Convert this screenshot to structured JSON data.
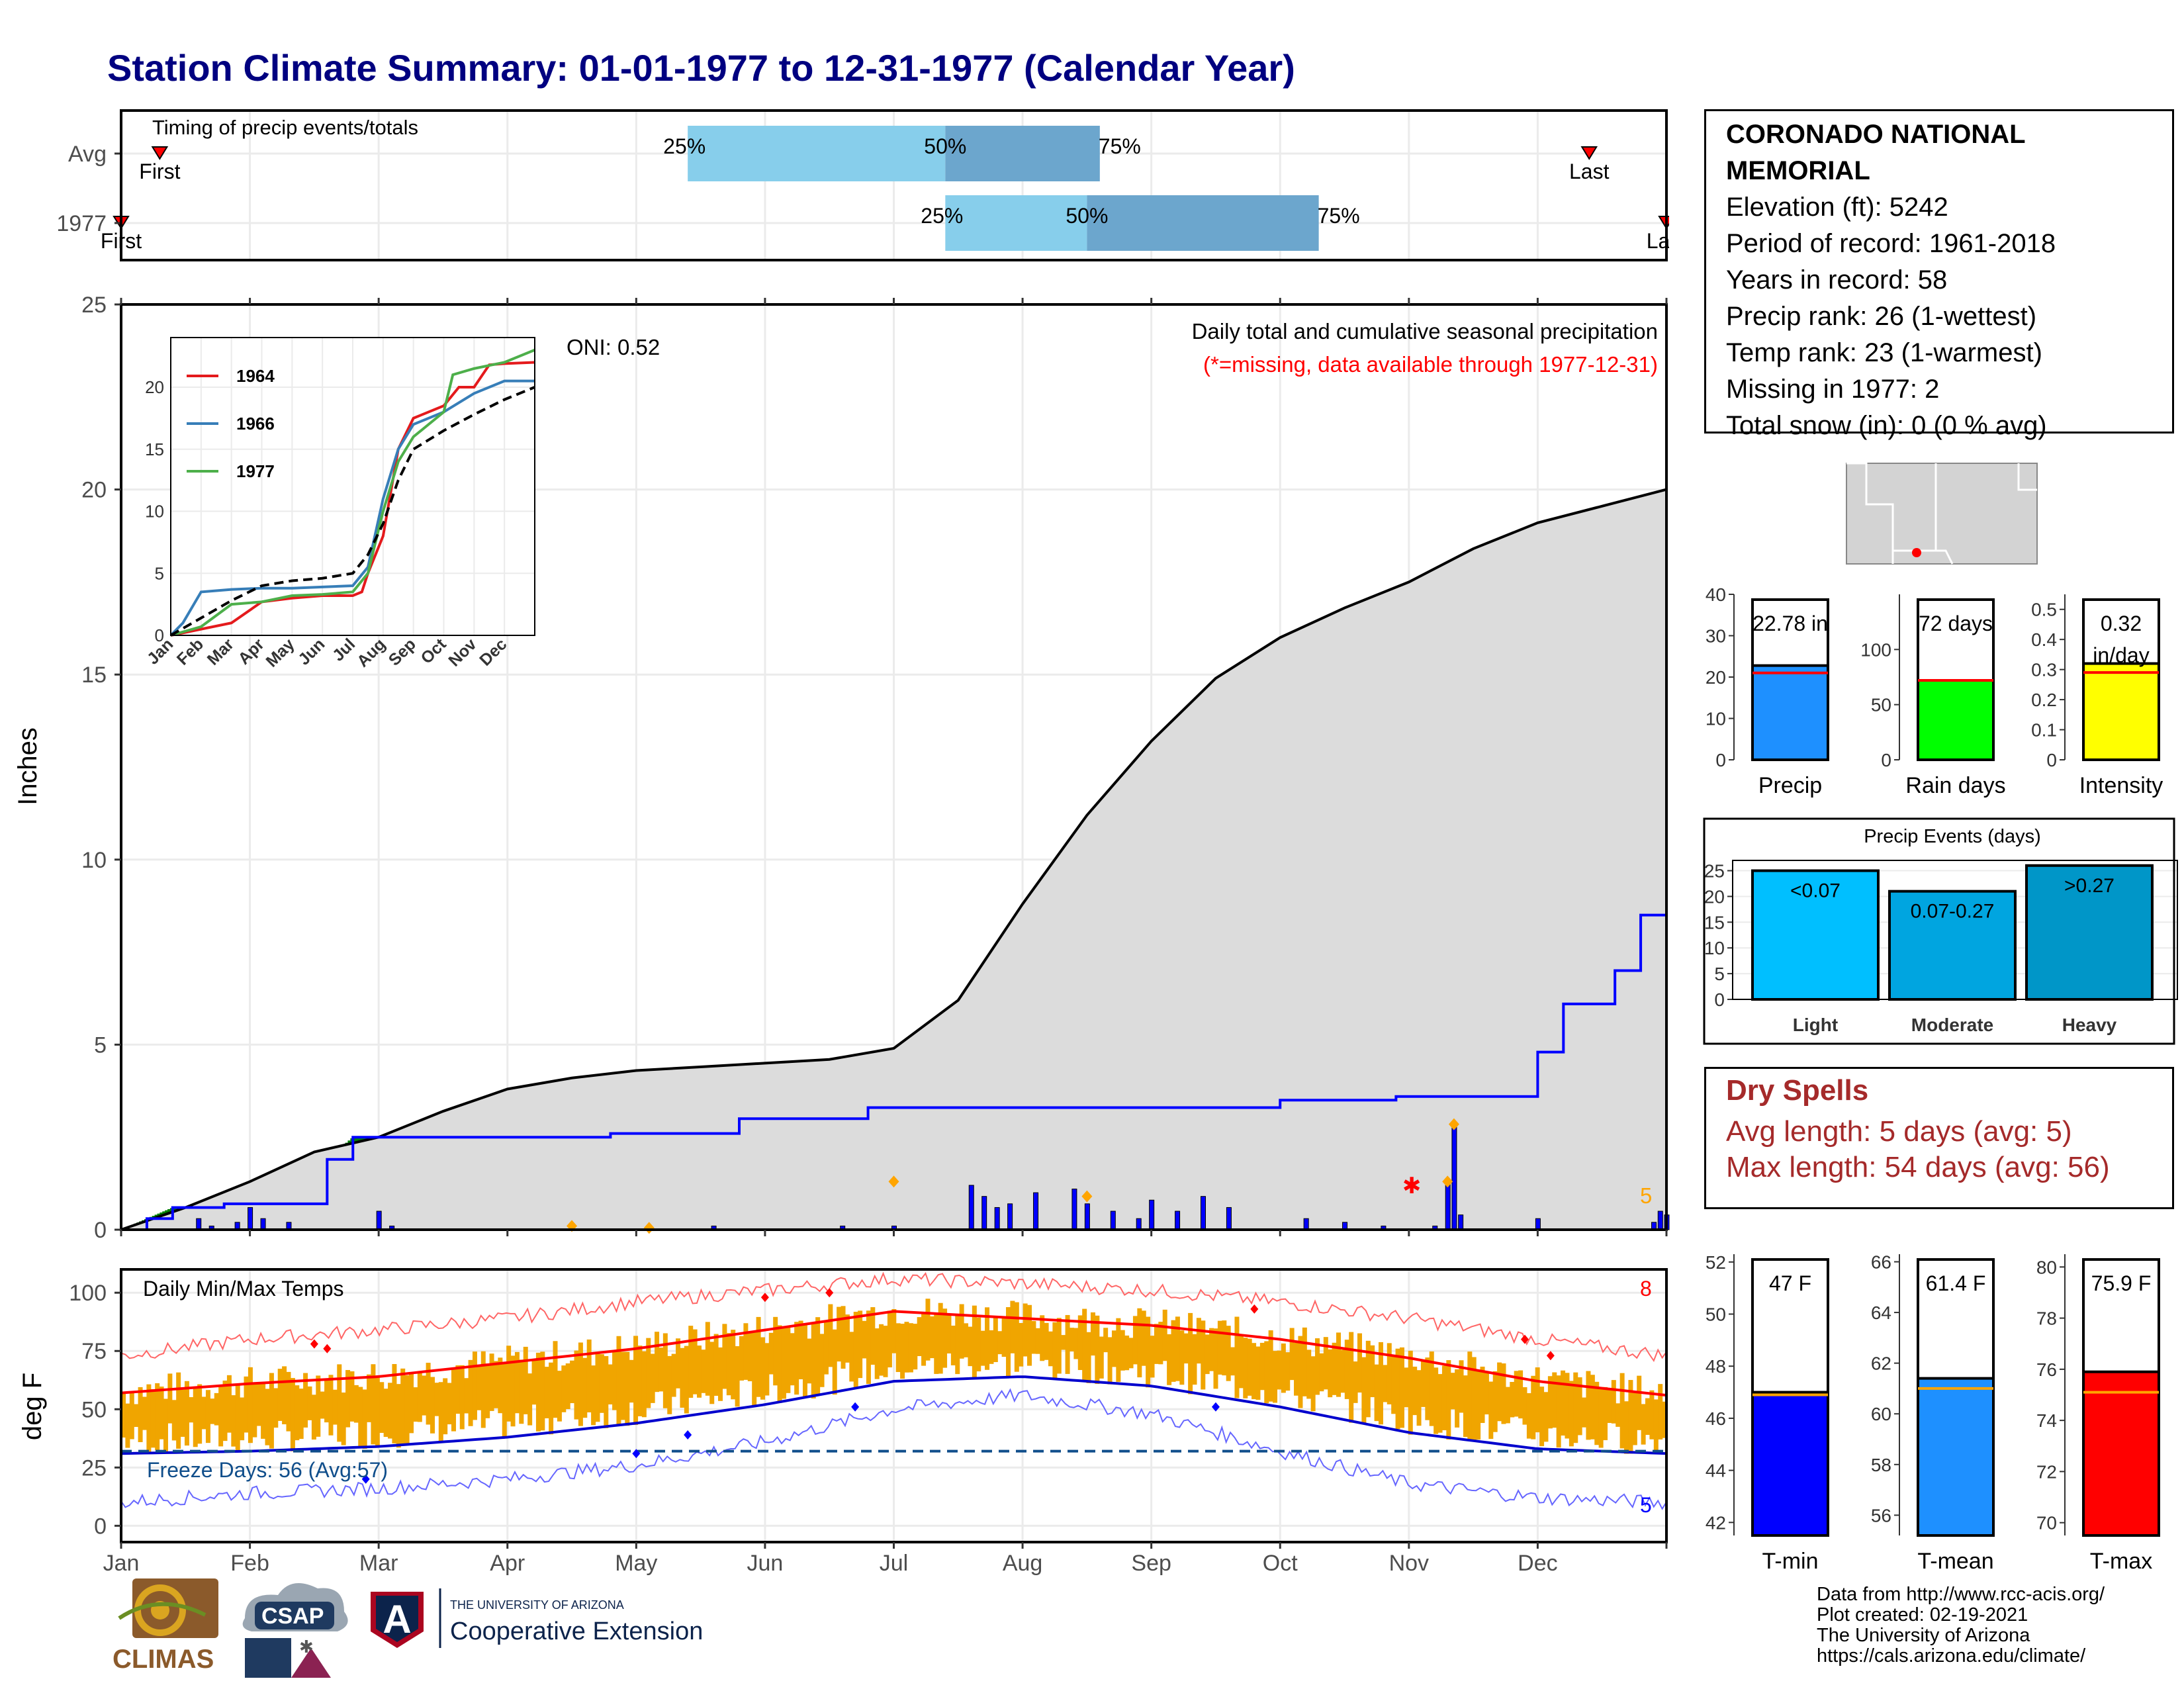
{
  "title": "Station Climate Summary: 01-01-1977 to 12-31-1977 (Calendar Year)",
  "colors": {
    "title": "#000080",
    "green": "#008000",
    "brown": "#8B5A00",
    "gray": "#DCDCDC",
    "blue": "#0000FF",
    "red": "#FF0000",
    "orange_bars": "#F0A500",
    "light_blue": "#87CEEB",
    "mid_blue": "#6CA6CD",
    "dry_spell": "#A52A2A"
  },
  "timing_panel": {
    "label": "Timing of precip events/totals",
    "rows": [
      {
        "name": "Avg",
        "first_label": "First",
        "last_label": "Last",
        "p25_label": "25%",
        "p50_label": "50%",
        "p75_label": "75%"
      },
      {
        "name": "1977",
        "first_label": "First",
        "last_label": "Last",
        "p25_label": "25%",
        "p50_label": "50%",
        "p75_label": "75%"
      }
    ]
  },
  "precip_panel": {
    "ylabel": "Inches",
    "oni": "ONI: 0.52",
    "title": "Daily total and cumulative seasonal precipitation",
    "subtitle": "(*=missing, data available through 1977-12-31)",
    "count_label": "5",
    "y_ticks": [
      "0",
      "5",
      "10",
      "15",
      "20",
      "25"
    ]
  },
  "temp_panel": {
    "ylabel": "deg F",
    "label": "Daily Min/Max Temps",
    "freeze_label": "Freeze Days: 56 (Avg:57)",
    "high_count": "8",
    "low_count": "5",
    "y_ticks": [
      "0",
      "25",
      "50",
      "75",
      "100"
    ]
  },
  "months": [
    "Jan",
    "Feb",
    "Mar",
    "Apr",
    "May",
    "Jun",
    "Jul",
    "Aug",
    "Sep",
    "Oct",
    "Nov",
    "Dec"
  ],
  "station": {
    "name_line1": "CORONADO NATIONAL",
    "name_line2": "MEMORIAL",
    "elevation": "Elevation (ft): 5242",
    "period": "Period of record: 1961-2018",
    "years": "Years in record: 58",
    "precip_rank": "Precip rank: 26 (1-wettest)",
    "temp_rank": "Temp rank: 23 (1-warmest)",
    "missing": "Missing in 1977: 2",
    "snow": "Total snow (in): 0 (0 % avg)"
  },
  "dry_spells": {
    "title": "Dry Spells",
    "avg": "Avg length: 5 days (avg: 5)",
    "max": "Max length: 54 days (avg: 56)"
  },
  "precip_events": {
    "title": "Precip Events (days)",
    "y_ticks": [
      "0",
      "5",
      "10",
      "15",
      "20",
      "25"
    ]
  },
  "credits": {
    "line1": "Data from http://www.rcc-acis.org/",
    "line2": "Plot created: 02-19-2021",
    "line3": "The University of Arizona",
    "line4": "https://cals.arizona.edu/climate/"
  },
  "logos": {
    "climas": "CLIMAS",
    "csap": "CSAP",
    "ua_top": "THE UNIVERSITY OF ARIZONA",
    "ua_bottom": "Cooperative Extension"
  },
  "chart_data": [
    {
      "id": "timing",
      "type": "bar",
      "x_unit": "month",
      "rows": [
        {
          "name": "Avg",
          "first": 1.3,
          "p25": 5.4,
          "p50": 7.4,
          "p75": 8.6,
          "last": 12.4
        },
        {
          "name": "1977",
          "first": 1.0,
          "p25": 7.4,
          "p50": 8.5,
          "p75": 10.3,
          "last": 13.0
        }
      ]
    },
    {
      "id": "cumulative_precip",
      "type": "area",
      "title": "Daily total and cumulative seasonal precipitation",
      "ylabel": "Inches",
      "ylim": [
        0,
        25
      ],
      "x_unit": "month",
      "year_cumulative": [
        [
          1,
          0
        ],
        [
          1.2,
          0.3
        ],
        [
          1.4,
          0.6
        ],
        [
          1.8,
          0.7
        ],
        [
          2.6,
          1.9
        ],
        [
          2.8,
          2.5
        ],
        [
          3.6,
          2.5
        ],
        [
          4.4,
          2.5
        ],
        [
          4.6,
          2.5
        ],
        [
          4.8,
          2.6
        ],
        [
          5.8,
          3
        ],
        [
          6.8,
          3.3
        ],
        [
          8.0,
          3.3
        ],
        [
          10.0,
          3.5
        ],
        [
          10.4,
          3.5
        ],
        [
          10.9,
          3.6
        ],
        [
          11.2,
          3.6
        ],
        [
          11.4,
          3.6
        ],
        [
          12.0,
          4.8
        ],
        [
          12.2,
          6.1
        ],
        [
          12.6,
          7.0
        ],
        [
          12.8,
          8.5
        ],
        [
          13.4,
          8.8
        ],
        [
          13.8,
          8.9
        ],
        [
          14.6,
          8.9
        ],
        [
          15.0,
          9.9
        ],
        [
          15.4,
          10.3
        ],
        [
          15.6,
          11.2
        ],
        [
          16.0,
          12.0
        ],
        [
          16.4,
          12.8
        ],
        [
          16.8,
          13.2
        ],
        [
          17.2,
          13.6
        ],
        [
          17.4,
          14.0
        ],
        [
          17.8,
          14.5
        ],
        [
          18.3,
          14.9
        ],
        [
          18.6,
          15.3
        ],
        [
          19.0,
          15.5
        ],
        [
          19.6,
          15.6
        ],
        [
          20.2,
          15.8
        ],
        [
          20.6,
          15.9
        ],
        [
          20.6,
          20.6
        ],
        [
          20.6,
          21.1
        ],
        [
          20.6,
          21.2
        ],
        [
          21.0,
          21.2
        ],
        [
          21.6,
          21.2
        ],
        [
          21.8,
          21.5
        ],
        [
          22.2,
          21.7
        ],
        [
          23.2,
          21.7
        ],
        [
          24.0,
          21.9
        ],
        [
          24.4,
          21.9
        ],
        [
          24.6,
          22.1
        ],
        [
          25.0,
          22.1
        ],
        [
          25.4,
          22.8
        ]
      ],
      "avg_cumulative": [
        [
          1,
          0
        ],
        [
          1.5,
          0.6
        ],
        [
          2,
          1.3
        ],
        [
          2.5,
          2.1
        ],
        [
          3,
          2.5
        ],
        [
          3.5,
          3.2
        ],
        [
          4,
          3.8
        ],
        [
          4.5,
          4.1
        ],
        [
          5,
          4.3
        ],
        [
          5.5,
          4.4
        ],
        [
          6,
          4.5
        ],
        [
          6.5,
          4.6
        ],
        [
          7,
          4.9
        ],
        [
          7.5,
          6.2
        ],
        [
          8,
          8.8
        ],
        [
          8.5,
          11.2
        ],
        [
          9,
          13.2
        ],
        [
          9.5,
          14.9
        ],
        [
          10,
          16.0
        ],
        [
          10.5,
          16.8
        ],
        [
          11,
          17.5
        ],
        [
          11.5,
          18.4
        ],
        [
          12,
          19.1
        ],
        [
          13,
          20.0
        ]
      ],
      "daily_precip": [
        [
          1.6,
          0.3
        ],
        [
          1.7,
          0.1
        ],
        [
          1.9,
          0.2
        ],
        [
          2.0,
          0.6
        ],
        [
          2.1,
          0.3
        ],
        [
          2.3,
          0.2
        ],
        [
          3.0,
          0.5
        ],
        [
          3.1,
          0.1
        ],
        [
          5.6,
          0.1
        ],
        [
          6.6,
          0.1
        ],
        [
          7.0,
          0.1
        ],
        [
          7.6,
          1.2
        ],
        [
          7.7,
          0.9
        ],
        [
          7.8,
          0.6
        ],
        [
          7.9,
          0.7
        ],
        [
          8.1,
          1.0
        ],
        [
          8.4,
          1.1
        ],
        [
          8.5,
          0.7
        ],
        [
          8.7,
          0.5
        ],
        [
          8.9,
          0.3
        ],
        [
          9.0,
          0.8
        ],
        [
          9.2,
          0.5
        ],
        [
          9.4,
          0.9
        ],
        [
          9.6,
          0.6
        ],
        [
          10.2,
          0.3
        ],
        [
          10.5,
          0.2
        ],
        [
          10.8,
          0.1
        ],
        [
          11.2,
          0.1
        ],
        [
          11.3,
          1.3
        ],
        [
          11.35,
          2.8
        ],
        [
          11.4,
          0.4
        ],
        [
          12.0,
          0.3
        ],
        [
          12.9,
          0.2
        ],
        [
          12.95,
          0.5
        ],
        [
          13.0,
          0.4
        ]
      ],
      "missing_marker_month": 11.0
    },
    {
      "id": "inset_cumulative",
      "type": "line",
      "ylim": [
        0,
        22
      ],
      "x_unit": "month",
      "series": [
        {
          "name": "1964",
          "color": "#E41A1C",
          "values": [
            [
              1,
              0
            ],
            [
              2,
              0.5
            ],
            [
              3,
              1
            ],
            [
              4,
              2.7
            ],
            [
              5,
              3
            ],
            [
              6,
              3.2
            ],
            [
              7,
              3.2
            ],
            [
              7.3,
              3.5
            ],
            [
              7.5,
              5
            ],
            [
              8,
              8
            ],
            [
              8.5,
              15
            ],
            [
              9,
              17.5
            ],
            [
              10,
              18.5
            ],
            [
              10.5,
              20
            ],
            [
              11,
              20
            ],
            [
              11.5,
              21.8
            ],
            [
              12,
              21.9
            ],
            [
              13,
              22
            ]
          ]
        },
        {
          "name": "1966",
          "color": "#377EB8",
          "values": [
            [
              1,
              0
            ],
            [
              1.4,
              1
            ],
            [
              2,
              3.5
            ],
            [
              3,
              3.7
            ],
            [
              4,
              3.8
            ],
            [
              5,
              3.8
            ],
            [
              6,
              3.9
            ],
            [
              7,
              4
            ],
            [
              7.5,
              5.5
            ],
            [
              8,
              11
            ],
            [
              8.5,
              15
            ],
            [
              9,
              17
            ],
            [
              10,
              18
            ],
            [
              11,
              19.5
            ],
            [
              12,
              20.5
            ],
            [
              13,
              20.5
            ]
          ]
        },
        {
          "name": "1977",
          "color": "#4DAF4A",
          "values": [
            [
              1,
              0
            ],
            [
              2,
              0.7
            ],
            [
              3,
              2.5
            ],
            [
              4,
              2.7
            ],
            [
              5,
              3.2
            ],
            [
              6,
              3.3
            ],
            [
              7,
              3.5
            ],
            [
              7.5,
              5
            ],
            [
              8,
              10
            ],
            [
              8.5,
              14
            ],
            [
              9,
              16
            ],
            [
              10,
              18
            ],
            [
              10.3,
              21
            ],
            [
              11,
              21.5
            ],
            [
              12,
              22
            ],
            [
              13,
              23
            ]
          ]
        },
        {
          "name": "Avg",
          "color": "#000000",
          "dashed": true,
          "values": [
            [
              1,
              0
            ],
            [
              2,
              1.4
            ],
            [
              3,
              2.8
            ],
            [
              4,
              4
            ],
            [
              5,
              4.4
            ],
            [
              6,
              4.6
            ],
            [
              7,
              5
            ],
            [
              7.5,
              6.5
            ],
            [
              8,
              9
            ],
            [
              8.5,
              12.5
            ],
            [
              9,
              15
            ],
            [
              10,
              16.5
            ],
            [
              11,
              17.8
            ],
            [
              12,
              19
            ],
            [
              13,
              20
            ]
          ]
        }
      ]
    },
    {
      "id": "temps",
      "type": "area",
      "title": "Daily Min/Max Temps",
      "ylabel": "deg F",
      "ylim": [
        0,
        100
      ],
      "freeze_line": 32,
      "avg_max": [
        [
          1,
          57
        ],
        [
          2,
          61
        ],
        [
          3,
          64
        ],
        [
          4,
          70
        ],
        [
          5,
          76
        ],
        [
          6,
          84
        ],
        [
          7,
          92
        ],
        [
          8,
          89
        ],
        [
          9,
          86
        ],
        [
          10,
          80
        ],
        [
          11,
          72
        ],
        [
          12,
          62
        ],
        [
          13,
          56
        ]
      ],
      "avg_min": [
        [
          1,
          31
        ],
        [
          2,
          32
        ],
        [
          3,
          34
        ],
        [
          4,
          38
        ],
        [
          5,
          44
        ],
        [
          6,
          52
        ],
        [
          7,
          62
        ],
        [
          8,
          64
        ],
        [
          9,
          60
        ],
        [
          10,
          51
        ],
        [
          11,
          40
        ],
        [
          12,
          33
        ],
        [
          13,
          31
        ]
      ],
      "record_max": [
        [
          1,
          73
        ],
        [
          2,
          80
        ],
        [
          3,
          84
        ],
        [
          4,
          89
        ],
        [
          5,
          96
        ],
        [
          6,
          101
        ],
        [
          7,
          106
        ],
        [
          8,
          104
        ],
        [
          9,
          101
        ],
        [
          10,
          96
        ],
        [
          11,
          89
        ],
        [
          12,
          80
        ],
        [
          13,
          73
        ]
      ],
      "record_min": [
        [
          1,
          10
        ],
        [
          2,
          14
        ],
        [
          3,
          16
        ],
        [
          4,
          20
        ],
        [
          5,
          26
        ],
        [
          6,
          36
        ],
        [
          7,
          50
        ],
        [
          8,
          56
        ],
        [
          9,
          48
        ],
        [
          10,
          32
        ],
        [
          11,
          18
        ],
        [
          12,
          12
        ],
        [
          13,
          10
        ]
      ]
    },
    {
      "id": "precip_summary",
      "type": "bar",
      "bars": [
        {
          "name": "Precip",
          "value": 22.78,
          "avg": 21.0,
          "label": "22.78 in",
          "ylim": [
            0,
            40
          ],
          "color": "#1E90FF"
        },
        {
          "name": "Rain days",
          "value": 72,
          "avg": 72,
          "label": "72 days",
          "ylim": [
            0,
            150
          ],
          "color": "#00FF00"
        },
        {
          "name": "Intensity",
          "value": 0.32,
          "avg": 0.29,
          "label": "0.32 in/day",
          "ylim": [
            0,
            0.55
          ],
          "color": "#FFFF00"
        }
      ]
    },
    {
      "id": "precip_events",
      "type": "bar",
      "title": "Precip Events (days)",
      "ylim": [
        0,
        27
      ],
      "categories": [
        "Light",
        "Moderate",
        "Heavy"
      ],
      "labels": [
        "<0.07",
        "0.07-0.27",
        ">0.27"
      ],
      "values": [
        25,
        21,
        26
      ]
    },
    {
      "id": "temp_summary",
      "type": "bar",
      "bars": [
        {
          "name": "T-min",
          "value": 47,
          "avg": 46.9,
          "label": "47 F",
          "ylim": [
            41.5,
            52.3
          ],
          "color": "#0000FF"
        },
        {
          "name": "T-mean",
          "value": 61.4,
          "avg": 61.0,
          "label": "61.4 F",
          "ylim": [
            55.2,
            66.3
          ],
          "color": "#1E90FF"
        },
        {
          "name": "T-max",
          "value": 75.9,
          "avg": 75.1,
          "label": "75.9 F",
          "ylim": [
            69.5,
            80.5
          ],
          "color": "#FF0000"
        }
      ]
    }
  ]
}
